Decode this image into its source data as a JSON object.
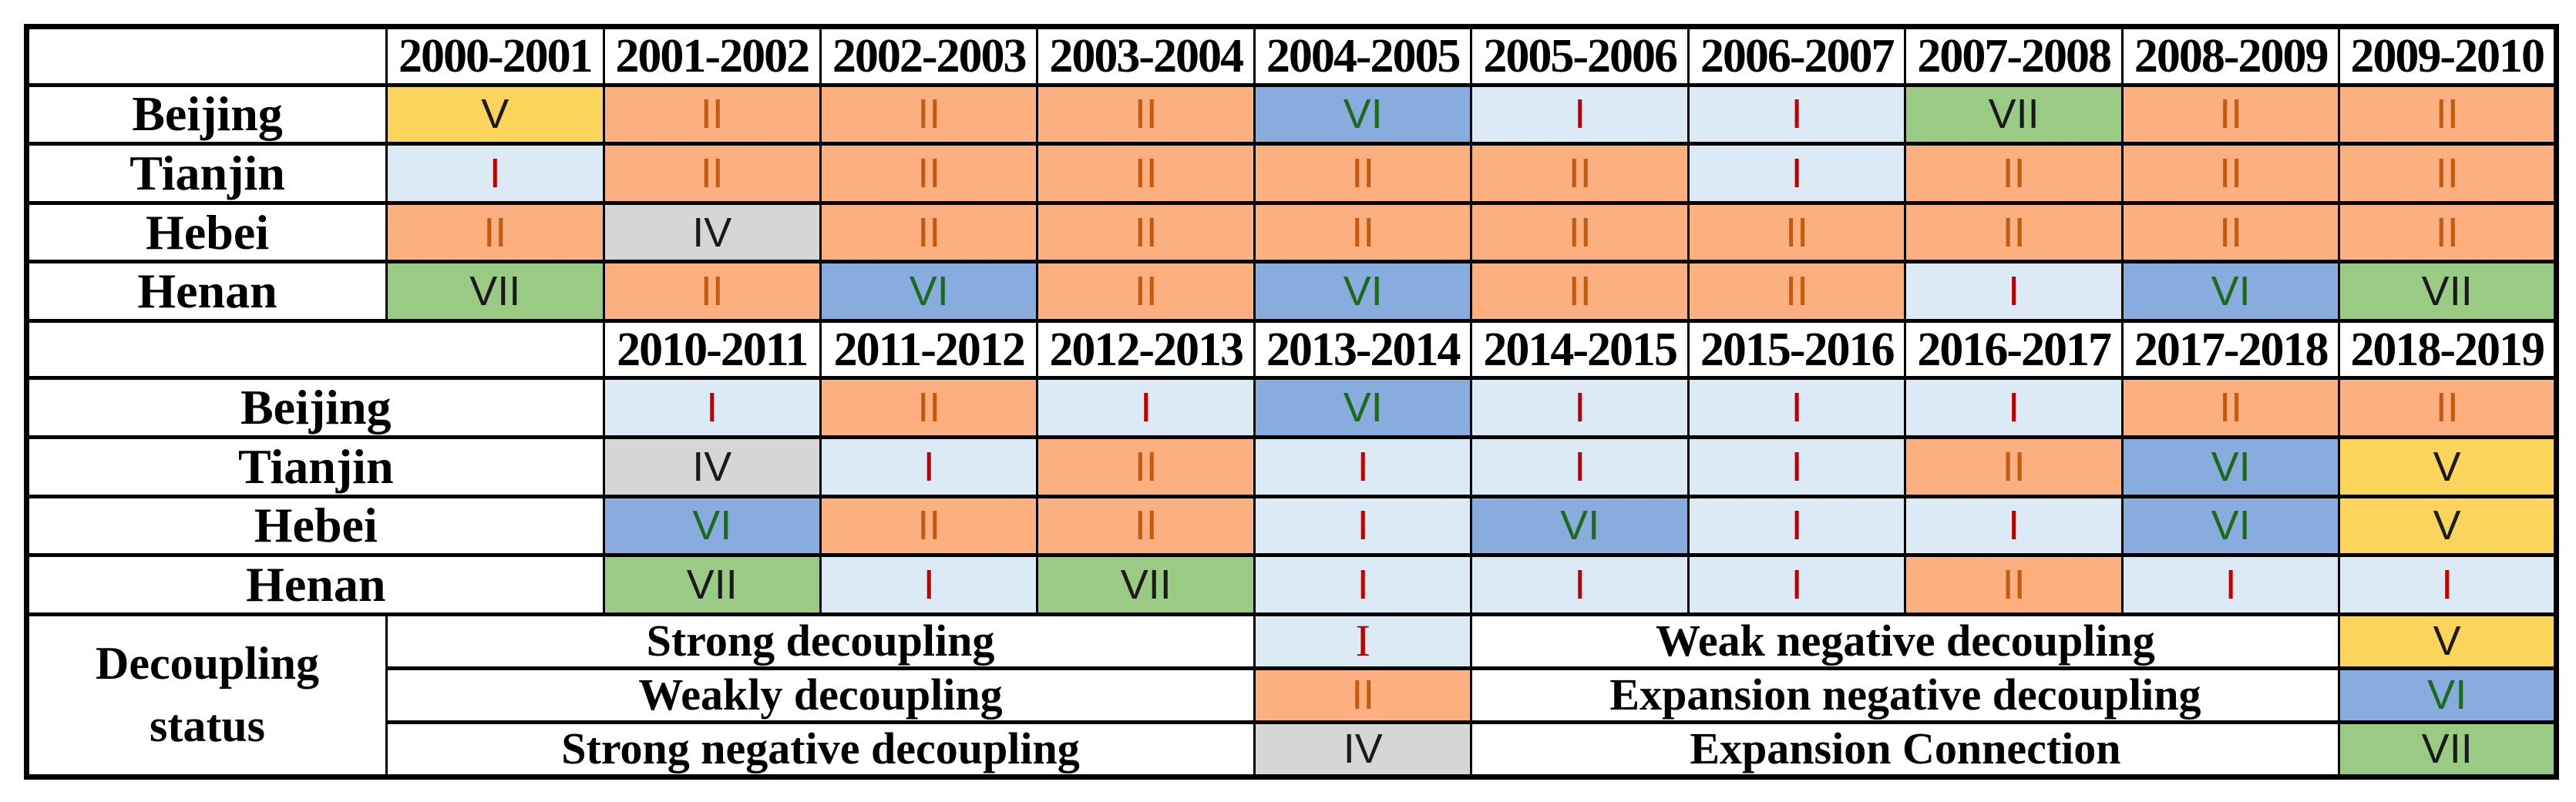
{
  "chart_data": {
    "type": "heatmap",
    "description_note": "",
    "blocks": [
      {
        "years": [
          "2000-2001",
          "2001-2002",
          "2002-2003",
          "2003-2004",
          "2004-2005",
          "2005-2006",
          "2006-2007",
          "2007-2008",
          "2008-2009",
          "2009-2010"
        ],
        "rows": [
          {
            "region": "Beijing",
            "cells": [
              "V",
              "II",
              "II",
              "II",
              "VI",
              "I",
              "I",
              "VII",
              "II",
              "II"
            ]
          },
          {
            "region": "Tianjin",
            "cells": [
              "I",
              "II",
              "II",
              "II",
              "II",
              "II",
              "I",
              "II",
              "II",
              "II"
            ]
          },
          {
            "region": "Hebei",
            "cells": [
              "II",
              "IV",
              "II",
              "II",
              "II",
              "II",
              "II",
              "II",
              "II",
              "II"
            ]
          },
          {
            "region": "Henan",
            "cells": [
              "VII",
              "II",
              "VI",
              "II",
              "VI",
              "II",
              "II",
              "I",
              "VI",
              "VII"
            ]
          }
        ]
      },
      {
        "years": [
          "2010-2011",
          "2011-2012",
          "2012-2013",
          "2013-2014",
          "2014-2015",
          "2015-2016",
          "2016-2017",
          "2017-2018",
          "2018-2019"
        ],
        "rows": [
          {
            "region": "Beijing",
            "cells": [
              "I",
              "II",
              "I",
              "VI",
              "I",
              "I",
              "I",
              "II",
              "II"
            ]
          },
          {
            "region": "Tianjin",
            "cells": [
              "IV",
              "I",
              "II",
              "I",
              "I",
              "I",
              "II",
              "VI",
              "V"
            ]
          },
          {
            "region": "Hebei",
            "cells": [
              "VI",
              "II",
              "II",
              "I",
              "VI",
              "I",
              "I",
              "VI",
              "V"
            ]
          },
          {
            "region": "Henan",
            "cells": [
              "VII",
              "I",
              "VII",
              "I",
              "I",
              "I",
              "II",
              "I",
              "I"
            ]
          }
        ]
      }
    ],
    "legend": {
      "title": "Decoupling\nstatus",
      "rows": [
        {
          "left_label": "Strong decoupling",
          "left_numeral": "I",
          "right_label": "Weak negative decoupling",
          "right_numeral": "V"
        },
        {
          "left_label": "Weakly decoupling",
          "left_numeral": "II",
          "right_label": "Expansion negative decoupling",
          "right_numeral": "VI"
        },
        {
          "left_label": "Strong negative decoupling",
          "left_numeral": "IV",
          "right_label": "Expansion Connection",
          "right_numeral": "VII"
        }
      ]
    },
    "status_styles": {
      "I": {
        "bg": "#DBEAF5",
        "fg": "#C00000"
      },
      "II": {
        "bg": "#FCB080",
        "fg": "#C55A11"
      },
      "IV": {
        "bg": "#D6D6D6",
        "fg": "#1A1A1A"
      },
      "V": {
        "bg": "#FBD45C",
        "fg": "#1A1A1A"
      },
      "VI": {
        "bg": "#87ACDD",
        "fg": "#1B6B1B"
      },
      "VII": {
        "bg": "#9ACB84",
        "fg": "#1A1A1A"
      }
    },
    "border_color": "#000000",
    "background_color": "#FFFFFF"
  }
}
